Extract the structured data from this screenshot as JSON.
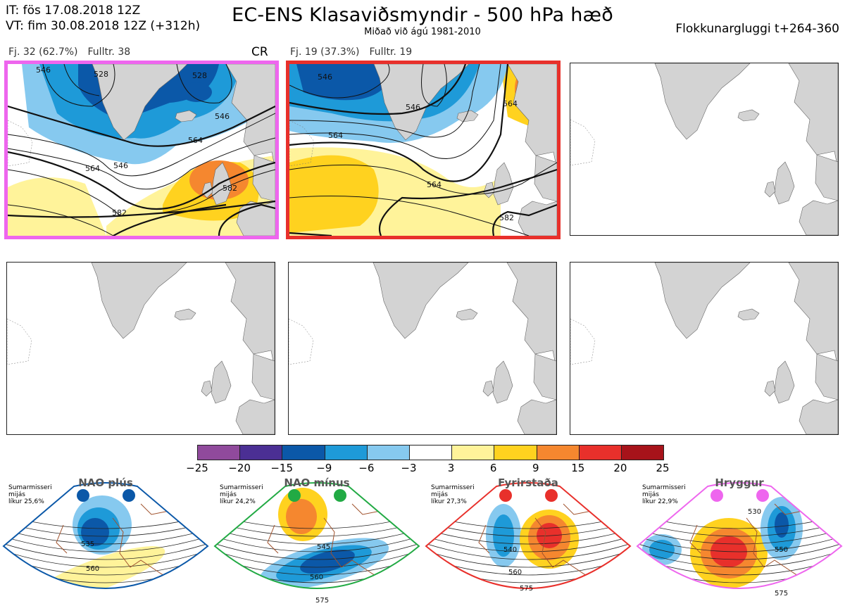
{
  "header": {
    "it_line": "IT: fös 17.08.2018 12Z",
    "vt_line": "VT: fim 30.08.2018 12Z  (+312h)",
    "title": "EC-ENS Klasaviðsmyndir - 500 hPa hæð",
    "subtitle": "Miðað við ágú 1981-2010",
    "window": "Flokkunargluggi t+264-360"
  },
  "panels": [
    {
      "count": "Fj. 32 (62.7%)",
      "rep": "Fulltr. 38",
      "tag": "CR",
      "frame_color": "#ee66ee",
      "contour_labels": [
        "528",
        "528",
        "546",
        "546",
        "564",
        "564",
        "582",
        "582",
        "546"
      ]
    },
    {
      "count": "Fj. 19 (37.3%)",
      "rep": "Fulltr. 19",
      "frame_color": "#e8302b",
      "contour_labels": [
        "546",
        "546",
        "564",
        "564",
        "564",
        "582"
      ]
    }
  ],
  "legend": {
    "colors": [
      "#904a9c",
      "#4b2f94",
      "#0b58a8",
      "#1e9ad8",
      "#86c9ef",
      "#ffffff",
      "#fff39a",
      "#ffd21f",
      "#f5872f",
      "#e8302b",
      "#a7131a"
    ],
    "ticks": [
      "−25",
      "−20",
      "−15",
      "−9",
      "−6",
      "−3",
      "3",
      "6",
      "9",
      "15",
      "20",
      "25"
    ]
  },
  "regimes": [
    {
      "name": "NAO plús",
      "season": "Sumarmisseri",
      "label": "mijás",
      "prob": "líkur 25,6%",
      "color": "#0b58a8",
      "contours": [
        "535",
        "560"
      ]
    },
    {
      "name": "NAO mínus",
      "season": "Sumarmisseri",
      "label": "mijás",
      "prob": "líkur 24,2%",
      "color": "#22aa44",
      "contours": [
        "545",
        "560",
        "575"
      ]
    },
    {
      "name": "Fyrirstaða",
      "season": "Sumarmisseri",
      "label": "mijás",
      "prob": "líkur 27,3%",
      "color": "#e8302b",
      "contours": [
        "540",
        "560",
        "575"
      ]
    },
    {
      "name": "Hryggur",
      "season": "Sumarmisseri",
      "label": "mijás",
      "prob": "líkur 22,9%",
      "color": "#ee66ee",
      "contours": [
        "530",
        "550",
        "575"
      ]
    }
  ]
}
